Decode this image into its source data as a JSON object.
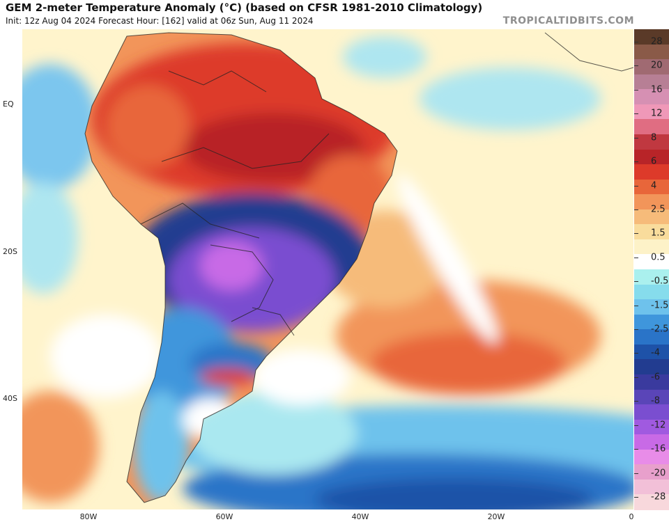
{
  "header": {
    "title": "GEM 2-meter Temperature Anomaly (°C) (based on CFSR 1981-2010 Climatology)",
    "subtitle": "Init: 12z Aug 04 2024    Forecast Hour: [162]    valid at 06z Sun, Aug 11 2024",
    "watermark": "TROPICALTIDBITS.COM"
  },
  "axes": {
    "lat_labels": [
      "EQ",
      "20S",
      "40S"
    ],
    "lon_labels": [
      "80W",
      "60W",
      "40W",
      "20W",
      "0"
    ]
  },
  "colorbar": {
    "labels": [
      "28",
      "20",
      "16",
      "12",
      "8",
      "6",
      "4",
      "2.5",
      "1.5",
      "0.5",
      "-0.5",
      "-1.5",
      "-2.5",
      "-4",
      "-6",
      "-8",
      "-12",
      "-16",
      "-20",
      "-28"
    ],
    "colors": [
      "#5a3a28",
      "#8a5a48",
      "#a06a72",
      "#b77f95",
      "#d690b3",
      "#ef98b8",
      "#e06d82",
      "#c03840",
      "#b82428",
      "#dd3a2a",
      "#e8663a",
      "#f2955a",
      "#f6bb7a",
      "#f9dc9c",
      "#fdf2c8",
      "#ffffff",
      "#aaf0ee",
      "#86dcec",
      "#6ec2ec",
      "#3f96dc",
      "#2a74c8",
      "#1e52a8",
      "#223c90",
      "#3a3a9e",
      "#5a45b8",
      "#7a4ed0",
      "#a05ae0",
      "#c86ae6",
      "#e88ce8",
      "#e8a0cc",
      "#f2c0d8",
      "#f8d8dc"
    ]
  }
}
